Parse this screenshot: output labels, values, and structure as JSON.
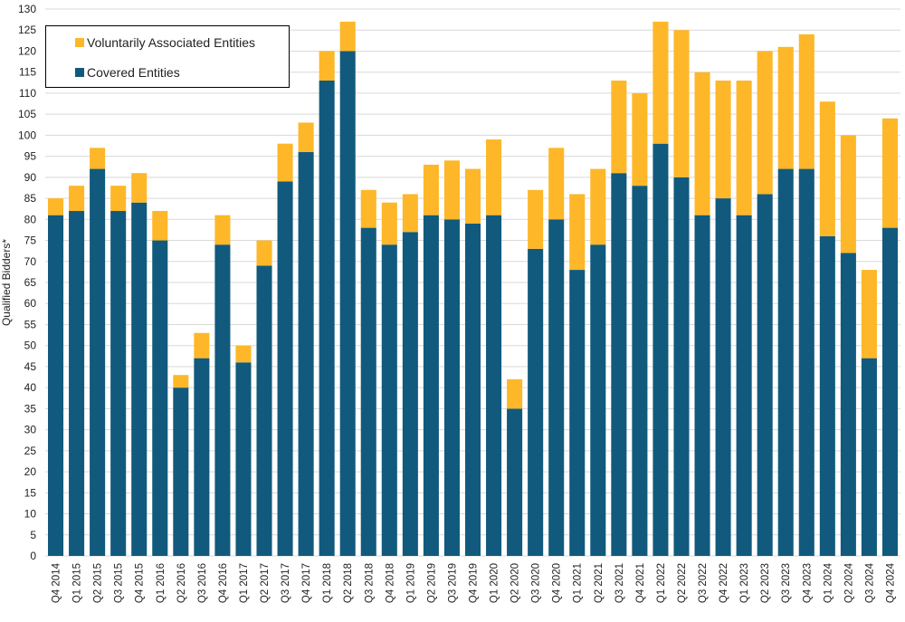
{
  "chart_data": {
    "type": "bar",
    "stacked": true,
    "title": "",
    "xlabel": "",
    "ylabel": "Qualified Bidders*",
    "ylim": [
      0,
      130
    ],
    "ytick_step": 5,
    "grid": true,
    "legend_position": "top-left",
    "categories": [
      "Q4 2014",
      "Q1 2015",
      "Q2 2015",
      "Q3 2015",
      "Q4 2015",
      "Q1 2016",
      "Q2 2016",
      "Q3 2016",
      "Q4 2016",
      "Q1 2017",
      "Q2 2017",
      "Q3 2017",
      "Q4 2017",
      "Q1 2018",
      "Q2 2018",
      "Q3 2018",
      "Q4 2018",
      "Q1 2019",
      "Q2 2019",
      "Q3 2019",
      "Q4 2019",
      "Q1 2020",
      "Q2 2020",
      "Q3 2020",
      "Q4 2020",
      "Q1 2021",
      "Q2 2021",
      "Q3 2021",
      "Q4 2021",
      "Q1 2022",
      "Q2 2022",
      "Q3 2022",
      "Q4 2022",
      "Q1 2023",
      "Q2 2023",
      "Q3 2023",
      "Q4 2023",
      "Q1 2024",
      "Q2 2024",
      "Q3 2024",
      "Q4 2024"
    ],
    "series": [
      {
        "name": "Covered Entities",
        "color": "#115a7d",
        "values": [
          81,
          82,
          92,
          82,
          84,
          75,
          40,
          47,
          74,
          46,
          69,
          89,
          96,
          113,
          120,
          78,
          74,
          77,
          81,
          80,
          79,
          81,
          35,
          73,
          80,
          68,
          74,
          91,
          88,
          98,
          90,
          81,
          85,
          81,
          86,
          92,
          92,
          76,
          72,
          47,
          78
        ]
      },
      {
        "name": "Voluntarily Associated Entities",
        "color": "#fdb728",
        "values": [
          4,
          6,
          5,
          6,
          7,
          7,
          3,
          6,
          7,
          4,
          6,
          9,
          7,
          7,
          7,
          9,
          10,
          9,
          12,
          14,
          13,
          18,
          7,
          14,
          17,
          18,
          18,
          22,
          22,
          29,
          35,
          34,
          28,
          32,
          34,
          29,
          32,
          32,
          28,
          21,
          26
        ]
      }
    ]
  }
}
